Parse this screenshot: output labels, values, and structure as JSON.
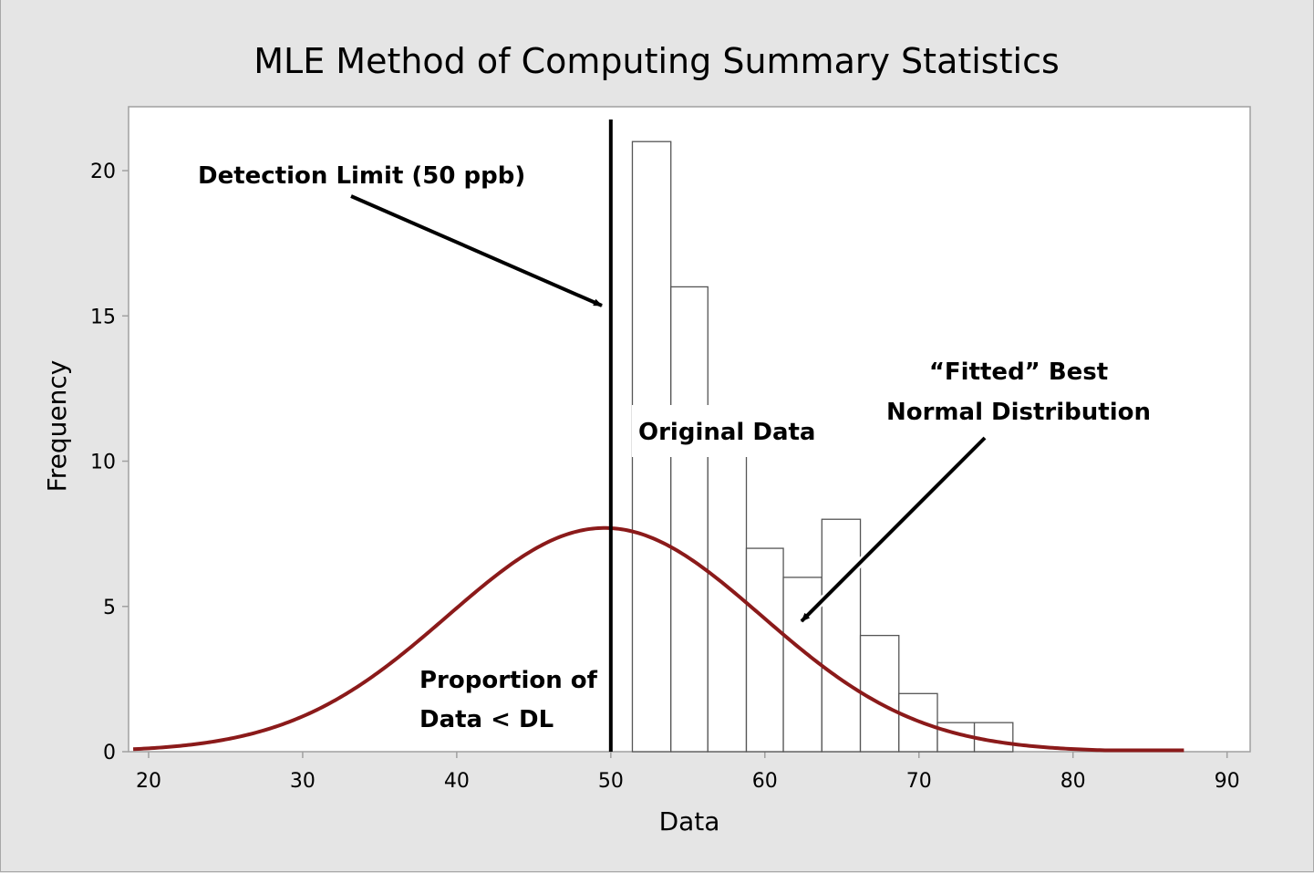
{
  "chart_data": {
    "type": "bar",
    "title": "MLE Method of Computing Summary Statistics",
    "xlabel": "Data",
    "ylabel": "Frequency",
    "xlim": [
      18.7,
      91.5
    ],
    "ylim": [
      0,
      22.2
    ],
    "xticks": [
      20,
      30,
      40,
      50,
      60,
      70,
      80,
      90
    ],
    "yticks": [
      0,
      5,
      10,
      15,
      20
    ],
    "grid": false,
    "histogram": {
      "name": "Original Data",
      "bin_edges": [
        51.4,
        53.9,
        56.3,
        58.8,
        61.2,
        63.7,
        66.2,
        68.7,
        71.2,
        73.6,
        76.1
      ],
      "counts": [
        21,
        16,
        11,
        7,
        6,
        8,
        4,
        2,
        1,
        1
      ]
    },
    "fitted_curve": {
      "name": "Fitted Best Normal Distribution",
      "distribution": "normal",
      "mean": 49.6,
      "sigma": 10.2,
      "peak": 7.7,
      "x_range": [
        19,
        87.2
      ],
      "color": "#8b1a1a"
    },
    "detection_limit": {
      "x": 50,
      "color": "#000000"
    },
    "annotations": {
      "detection_limit": "Detection Limit (50 ppb)",
      "original_data": "Original Data",
      "fitted_line1": "“Fitted” Best",
      "fitted_line2": "Normal Distribution",
      "proportion_line1": "Proportion of",
      "proportion_line2": "Data < DL"
    }
  }
}
